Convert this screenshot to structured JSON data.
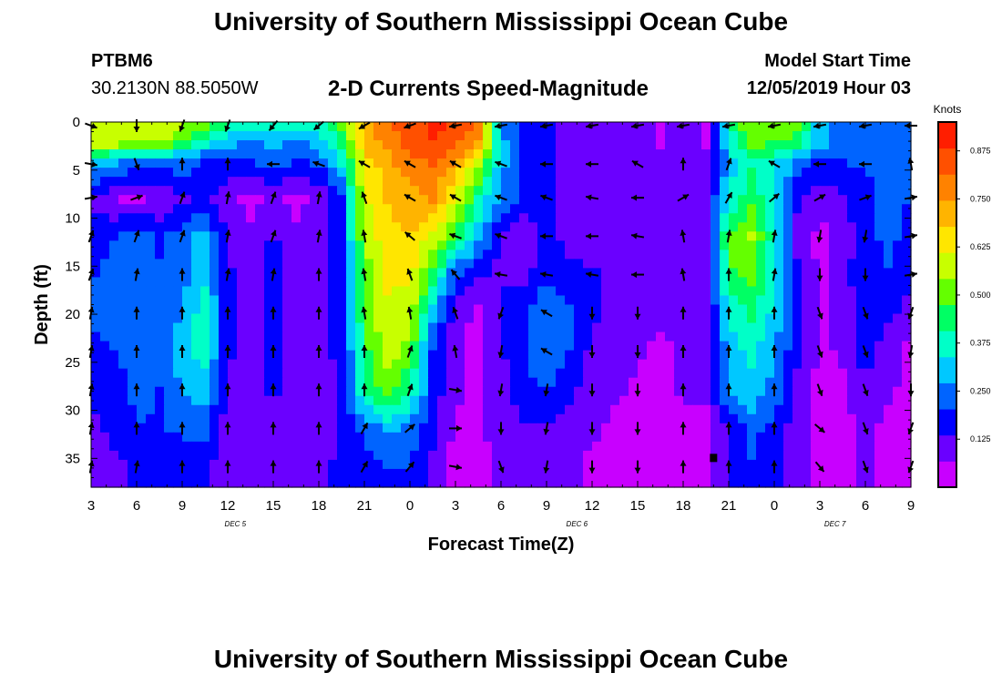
{
  "header": {
    "title": "University of Southern Mississippi Ocean Cube",
    "station_id": "PTBM6",
    "station_coords": "30.2130N 88.5050W",
    "plot_title": "2-D Currents Speed-Magnitude",
    "model_start_label": "Model Start Time",
    "model_start_value": "12/05/2019 Hour 03"
  },
  "footer": {
    "title": "University of Southern Mississippi Ocean Cube"
  },
  "chart_data": {
    "type": "heatmap",
    "title": "2-D Currents Speed-Magnitude",
    "xlabel": "Forecast Time(Z)",
    "ylabel": "Depth (ft)",
    "x_tick_labels": [
      "3",
      "6",
      "9",
      "12",
      "15",
      "18",
      "21",
      "0",
      "3",
      "6",
      "9",
      "12",
      "15",
      "18",
      "21",
      "0",
      "3",
      "6",
      "9"
    ],
    "x_hours_from_start": [
      0,
      3,
      6,
      9,
      12,
      15,
      18,
      21,
      24,
      27,
      30,
      33,
      36,
      39,
      42,
      45,
      48,
      51,
      54
    ],
    "date_labels": [
      {
        "label": "DEC 5",
        "hour": 9.5
      },
      {
        "label": "DEC 6",
        "hour": 32
      },
      {
        "label": "DEC 7",
        "hour": 49
      }
    ],
    "y_ticks": [
      0,
      5,
      10,
      15,
      20,
      25,
      30,
      35
    ],
    "ylim": [
      0,
      38
    ],
    "colorbar": {
      "label": "Knots",
      "ticks": [
        0.125,
        0.25,
        0.375,
        0.5,
        0.625,
        0.75,
        0.875
      ],
      "tick_labels": [
        "0.125",
        "0.250",
        "0.375",
        "0.500",
        "0.625",
        "0.750",
        "0.875"
      ],
      "range": [
        0,
        0.95
      ],
      "colors": [
        "#c800ff",
        "#6a00ff",
        "#0000ff",
        "#0064ff",
        "#00c8ff",
        "#00ffc8",
        "#00ff64",
        "#64ff00",
        "#c8ff00",
        "#ffe600",
        "#ffb400",
        "#ff8200",
        "#ff5000",
        "#ff1e00"
      ]
    },
    "speed_time_hours": [
      0,
      1.5,
      3,
      4.5,
      6,
      7.5,
      9,
      10.5,
      12,
      13.5,
      15,
      16.5,
      18,
      19.5,
      21,
      22.5,
      24,
      25.5,
      27,
      28.5,
      30,
      31.5,
      33,
      34.5,
      36,
      37.5,
      39,
      40.5,
      42,
      43.5,
      45,
      46.5,
      48,
      49.5,
      51,
      52.5,
      54
    ],
    "speed_depths_ft": [
      0,
      2,
      4,
      8,
      12,
      16,
      20,
      24,
      28,
      32,
      36,
      38
    ],
    "speed_knots": [
      [
        0.6,
        0.6,
        0.6,
        0.6,
        0.55,
        0.5,
        0.45,
        0.4,
        0.45,
        0.4,
        0.35,
        0.5,
        0.7,
        0.8,
        0.85,
        0.9,
        0.88,
        0.8,
        0.25,
        0.2,
        0.15,
        0.1,
        0.1,
        0.1,
        0.1,
        0.05,
        0.1,
        0.05,
        0.4,
        0.55,
        0.55,
        0.5,
        0.3,
        0.25,
        0.25,
        0.25,
        0.2
      ],
      [
        0.6,
        0.6,
        0.55,
        0.55,
        0.5,
        0.4,
        0.3,
        0.25,
        0.3,
        0.25,
        0.3,
        0.45,
        0.7,
        0.78,
        0.85,
        0.88,
        0.85,
        0.75,
        0.3,
        0.2,
        0.15,
        0.1,
        0.1,
        0.1,
        0.1,
        0.05,
        0.1,
        0.05,
        0.35,
        0.5,
        0.5,
        0.45,
        0.3,
        0.25,
        0.25,
        0.25,
        0.2
      ],
      [
        0.35,
        0.3,
        0.25,
        0.25,
        0.25,
        0.2,
        0.2,
        0.2,
        0.25,
        0.2,
        0.22,
        0.35,
        0.65,
        0.72,
        0.8,
        0.82,
        0.75,
        0.6,
        0.3,
        0.2,
        0.15,
        0.12,
        0.1,
        0.1,
        0.1,
        0.1,
        0.1,
        0.08,
        0.3,
        0.4,
        0.35,
        0.25,
        0.2,
        0.2,
        0.22,
        0.22,
        0.2
      ],
      [
        0.12,
        0.07,
        0.05,
        0.08,
        0.12,
        0.15,
        0.08,
        0.05,
        0.08,
        0.05,
        0.08,
        0.2,
        0.6,
        0.68,
        0.72,
        0.75,
        0.62,
        0.4,
        0.25,
        0.18,
        0.15,
        0.12,
        0.1,
        0.1,
        0.1,
        0.1,
        0.12,
        0.12,
        0.35,
        0.45,
        0.35,
        0.15,
        0.08,
        0.12,
        0.18,
        0.22,
        0.2
      ],
      [
        0.18,
        0.2,
        0.25,
        0.18,
        0.25,
        0.3,
        0.12,
        0.08,
        0.15,
        0.08,
        0.1,
        0.2,
        0.55,
        0.65,
        0.68,
        0.6,
        0.45,
        0.3,
        0.12,
        0.08,
        0.15,
        0.12,
        0.1,
        0.08,
        0.1,
        0.1,
        0.12,
        0.1,
        0.5,
        0.55,
        0.38,
        0.12,
        0.05,
        0.1,
        0.18,
        0.22,
        0.18
      ],
      [
        0.2,
        0.22,
        0.25,
        0.22,
        0.25,
        0.32,
        0.15,
        0.1,
        0.15,
        0.1,
        0.12,
        0.18,
        0.5,
        0.62,
        0.62,
        0.45,
        0.2,
        0.15,
        0.12,
        0.12,
        0.18,
        0.15,
        0.15,
        0.12,
        0.12,
        0.1,
        0.12,
        0.1,
        0.45,
        0.5,
        0.35,
        0.15,
        0.05,
        0.1,
        0.2,
        0.2,
        0.15
      ],
      [
        0.22,
        0.23,
        0.25,
        0.22,
        0.28,
        0.38,
        0.15,
        0.1,
        0.18,
        0.1,
        0.12,
        0.15,
        0.48,
        0.6,
        0.58,
        0.3,
        0.1,
        0.05,
        0.15,
        0.2,
        0.28,
        0.22,
        0.15,
        0.12,
        0.1,
        0.08,
        0.1,
        0.08,
        0.35,
        0.42,
        0.32,
        0.15,
        0.05,
        0.08,
        0.2,
        0.15,
        0.1
      ],
      [
        0.18,
        0.2,
        0.22,
        0.22,
        0.3,
        0.38,
        0.15,
        0.1,
        0.15,
        0.1,
        0.12,
        0.15,
        0.45,
        0.58,
        0.5,
        0.2,
        0.08,
        0.05,
        0.12,
        0.2,
        0.28,
        0.2,
        0.12,
        0.1,
        0.08,
        0.05,
        0.08,
        0.08,
        0.3,
        0.35,
        0.28,
        0.15,
        0.05,
        0.08,
        0.18,
        0.08,
        0.05
      ],
      [
        0.15,
        0.18,
        0.22,
        0.2,
        0.28,
        0.3,
        0.12,
        0.08,
        0.15,
        0.08,
        0.1,
        0.15,
        0.4,
        0.5,
        0.42,
        0.18,
        0.08,
        0.05,
        0.12,
        0.18,
        0.2,
        0.15,
        0.1,
        0.08,
        0.05,
        0.05,
        0.08,
        0.08,
        0.28,
        0.32,
        0.25,
        0.12,
        0.05,
        0.05,
        0.12,
        0.08,
        0.05
      ],
      [
        0.12,
        0.15,
        0.2,
        0.2,
        0.22,
        0.22,
        0.1,
        0.08,
        0.12,
        0.08,
        0.1,
        0.15,
        0.22,
        0.28,
        0.25,
        0.15,
        0.05,
        0.05,
        0.1,
        0.12,
        0.12,
        0.1,
        0.08,
        0.05,
        0.05,
        0.02,
        0.05,
        0.05,
        0.15,
        0.22,
        0.18,
        0.1,
        0.05,
        0.05,
        0.08,
        0.05,
        0.02
      ],
      [
        0.1,
        0.12,
        0.15,
        0.15,
        0.15,
        0.15,
        0.08,
        0.08,
        0.1,
        0.08,
        0.12,
        0.15,
        0.18,
        0.2,
        0.2,
        0.12,
        0.05,
        0.05,
        0.08,
        0.1,
        0.1,
        0.08,
        0.05,
        0.05,
        0.05,
        0.02,
        0.05,
        0.05,
        0.15,
        0.2,
        0.15,
        0.08,
        0.05,
        0.05,
        0.08,
        0.05,
        0.02
      ],
      [
        0.1,
        0.12,
        0.15,
        0.15,
        0.15,
        0.15,
        0.08,
        0.08,
        0.1,
        0.08,
        0.12,
        0.15,
        0.18,
        0.2,
        0.2,
        0.12,
        0.05,
        0.05,
        0.08,
        0.1,
        0.1,
        0.08,
        0.05,
        0.05,
        0.05,
        0.02,
        0.05,
        0.05,
        0.15,
        0.2,
        0.15,
        0.08,
        0.05,
        0.05,
        0.08,
        0.05,
        0.02
      ]
    ],
    "vector_time_hours": [
      0,
      3,
      6,
      9,
      12,
      15,
      18,
      21,
      24,
      27,
      30,
      33,
      36,
      39,
      42,
      45,
      48,
      51,
      54
    ],
    "vector_depths_ft": [
      0,
      4,
      7.5,
      11.5,
      15.5,
      19.5,
      23.5,
      27.5,
      31.5,
      35.5
    ],
    "vector_direction_deg": [
      [
        110,
        180,
        200,
        200,
        220,
        230,
        240,
        250,
        260,
        260,
        260,
        260,
        260,
        260,
        260,
        260,
        260,
        260,
        270
      ],
      [
        100,
        160,
        0,
        0,
        270,
        290,
        300,
        300,
        300,
        290,
        270,
        270,
        300,
        0,
        20,
        300,
        270,
        270,
        350
      ],
      [
        80,
        70,
        20,
        10,
        20,
        10,
        340,
        300,
        300,
        290,
        290,
        280,
        270,
        60,
        30,
        50,
        60,
        70,
        80
      ],
      [
        20,
        20,
        20,
        10,
        20,
        10,
        350,
        310,
        290,
        290,
        270,
        270,
        280,
        350,
        10,
        10,
        190,
        190,
        80
      ],
      [
        20,
        10,
        0,
        10,
        10,
        0,
        350,
        340,
        320,
        280,
        280,
        280,
        270,
        350,
        0,
        10,
        180,
        180,
        80
      ],
      [
        10,
        0,
        0,
        0,
        0,
        0,
        350,
        350,
        340,
        200,
        300,
        180,
        180,
        0,
        0,
        0,
        160,
        160,
        200
      ],
      [
        10,
        0,
        0,
        0,
        0,
        0,
        0,
        20,
        350,
        190,
        300,
        180,
        180,
        0,
        0,
        0,
        160,
        160,
        190
      ],
      [
        10,
        0,
        0,
        0,
        0,
        0,
        0,
        20,
        100,
        190,
        190,
        180,
        180,
        0,
        0,
        0,
        160,
        160,
        180
      ],
      [
        10,
        0,
        0,
        0,
        0,
        0,
        30,
        50,
        90,
        180,
        190,
        180,
        180,
        0,
        0,
        0,
        130,
        160,
        200
      ],
      [
        10,
        10,
        0,
        0,
        0,
        0,
        30,
        40,
        100,
        160,
        190,
        180,
        180,
        0,
        0,
        0,
        140,
        160,
        200
      ]
    ],
    "highlight_marker": {
      "hour": 41,
      "depth_ft": 35
    }
  }
}
